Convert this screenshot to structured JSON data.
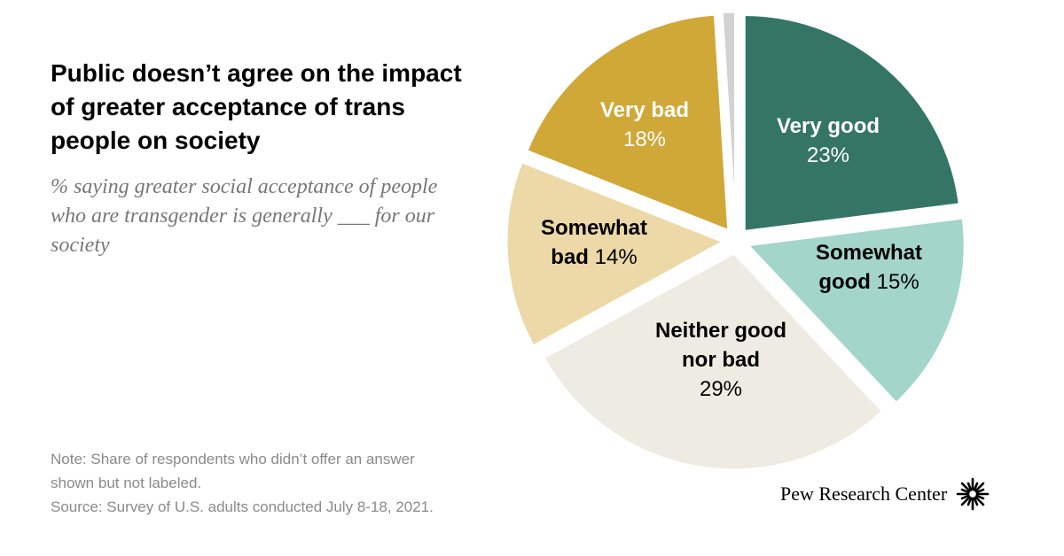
{
  "title": "Public doesn’t agree on the impact of greater acceptance of trans people on society",
  "subtitle": "% saying greater social acceptance of people who are transgender is generally ___ for our society",
  "note_lines": [
    "Note: Share of respondents who didn’t offer an answer",
    "shown but not labeled.",
    "Source: Survey of U.S. adults conducted July 8-18, 2021."
  ],
  "logo_text": "Pew Research Center",
  "chart_data": {
    "type": "pie",
    "title": "Public doesn’t agree on the impact of greater acceptance of trans people on society",
    "series": [
      {
        "name": "Very good",
        "value": 23,
        "label_lines": [
          "Very good"
        ],
        "value_label": "23%",
        "color": "#357566",
        "text_color": "#ffffff"
      },
      {
        "name": "Somewhat good",
        "value": 15,
        "label_lines": [
          "Somewhat",
          "good"
        ],
        "value_label": "15%",
        "color": "#a3d5ca",
        "text_color": "#000000"
      },
      {
        "name": "Neither good nor bad",
        "value": 29,
        "label_lines": [
          "Neither good",
          "nor bad"
        ],
        "value_label": "29%",
        "color": "#eeece2",
        "text_color": "#000000"
      },
      {
        "name": "Somewhat bad",
        "value": 14,
        "label_lines": [
          "Somewhat",
          "bad"
        ],
        "value_label": "14%",
        "color": "#ecd9a7",
        "text_color": "#000000"
      },
      {
        "name": "Very bad",
        "value": 18,
        "label_lines": [
          "Very bad"
        ],
        "value_label": "18%",
        "color": "#d0a838",
        "text_color": "#ffffff"
      },
      {
        "name": "No answer",
        "value": 1,
        "label_lines": [],
        "value_label": "",
        "color": "#d2d2d2",
        "text_color": "#000000"
      }
    ]
  }
}
